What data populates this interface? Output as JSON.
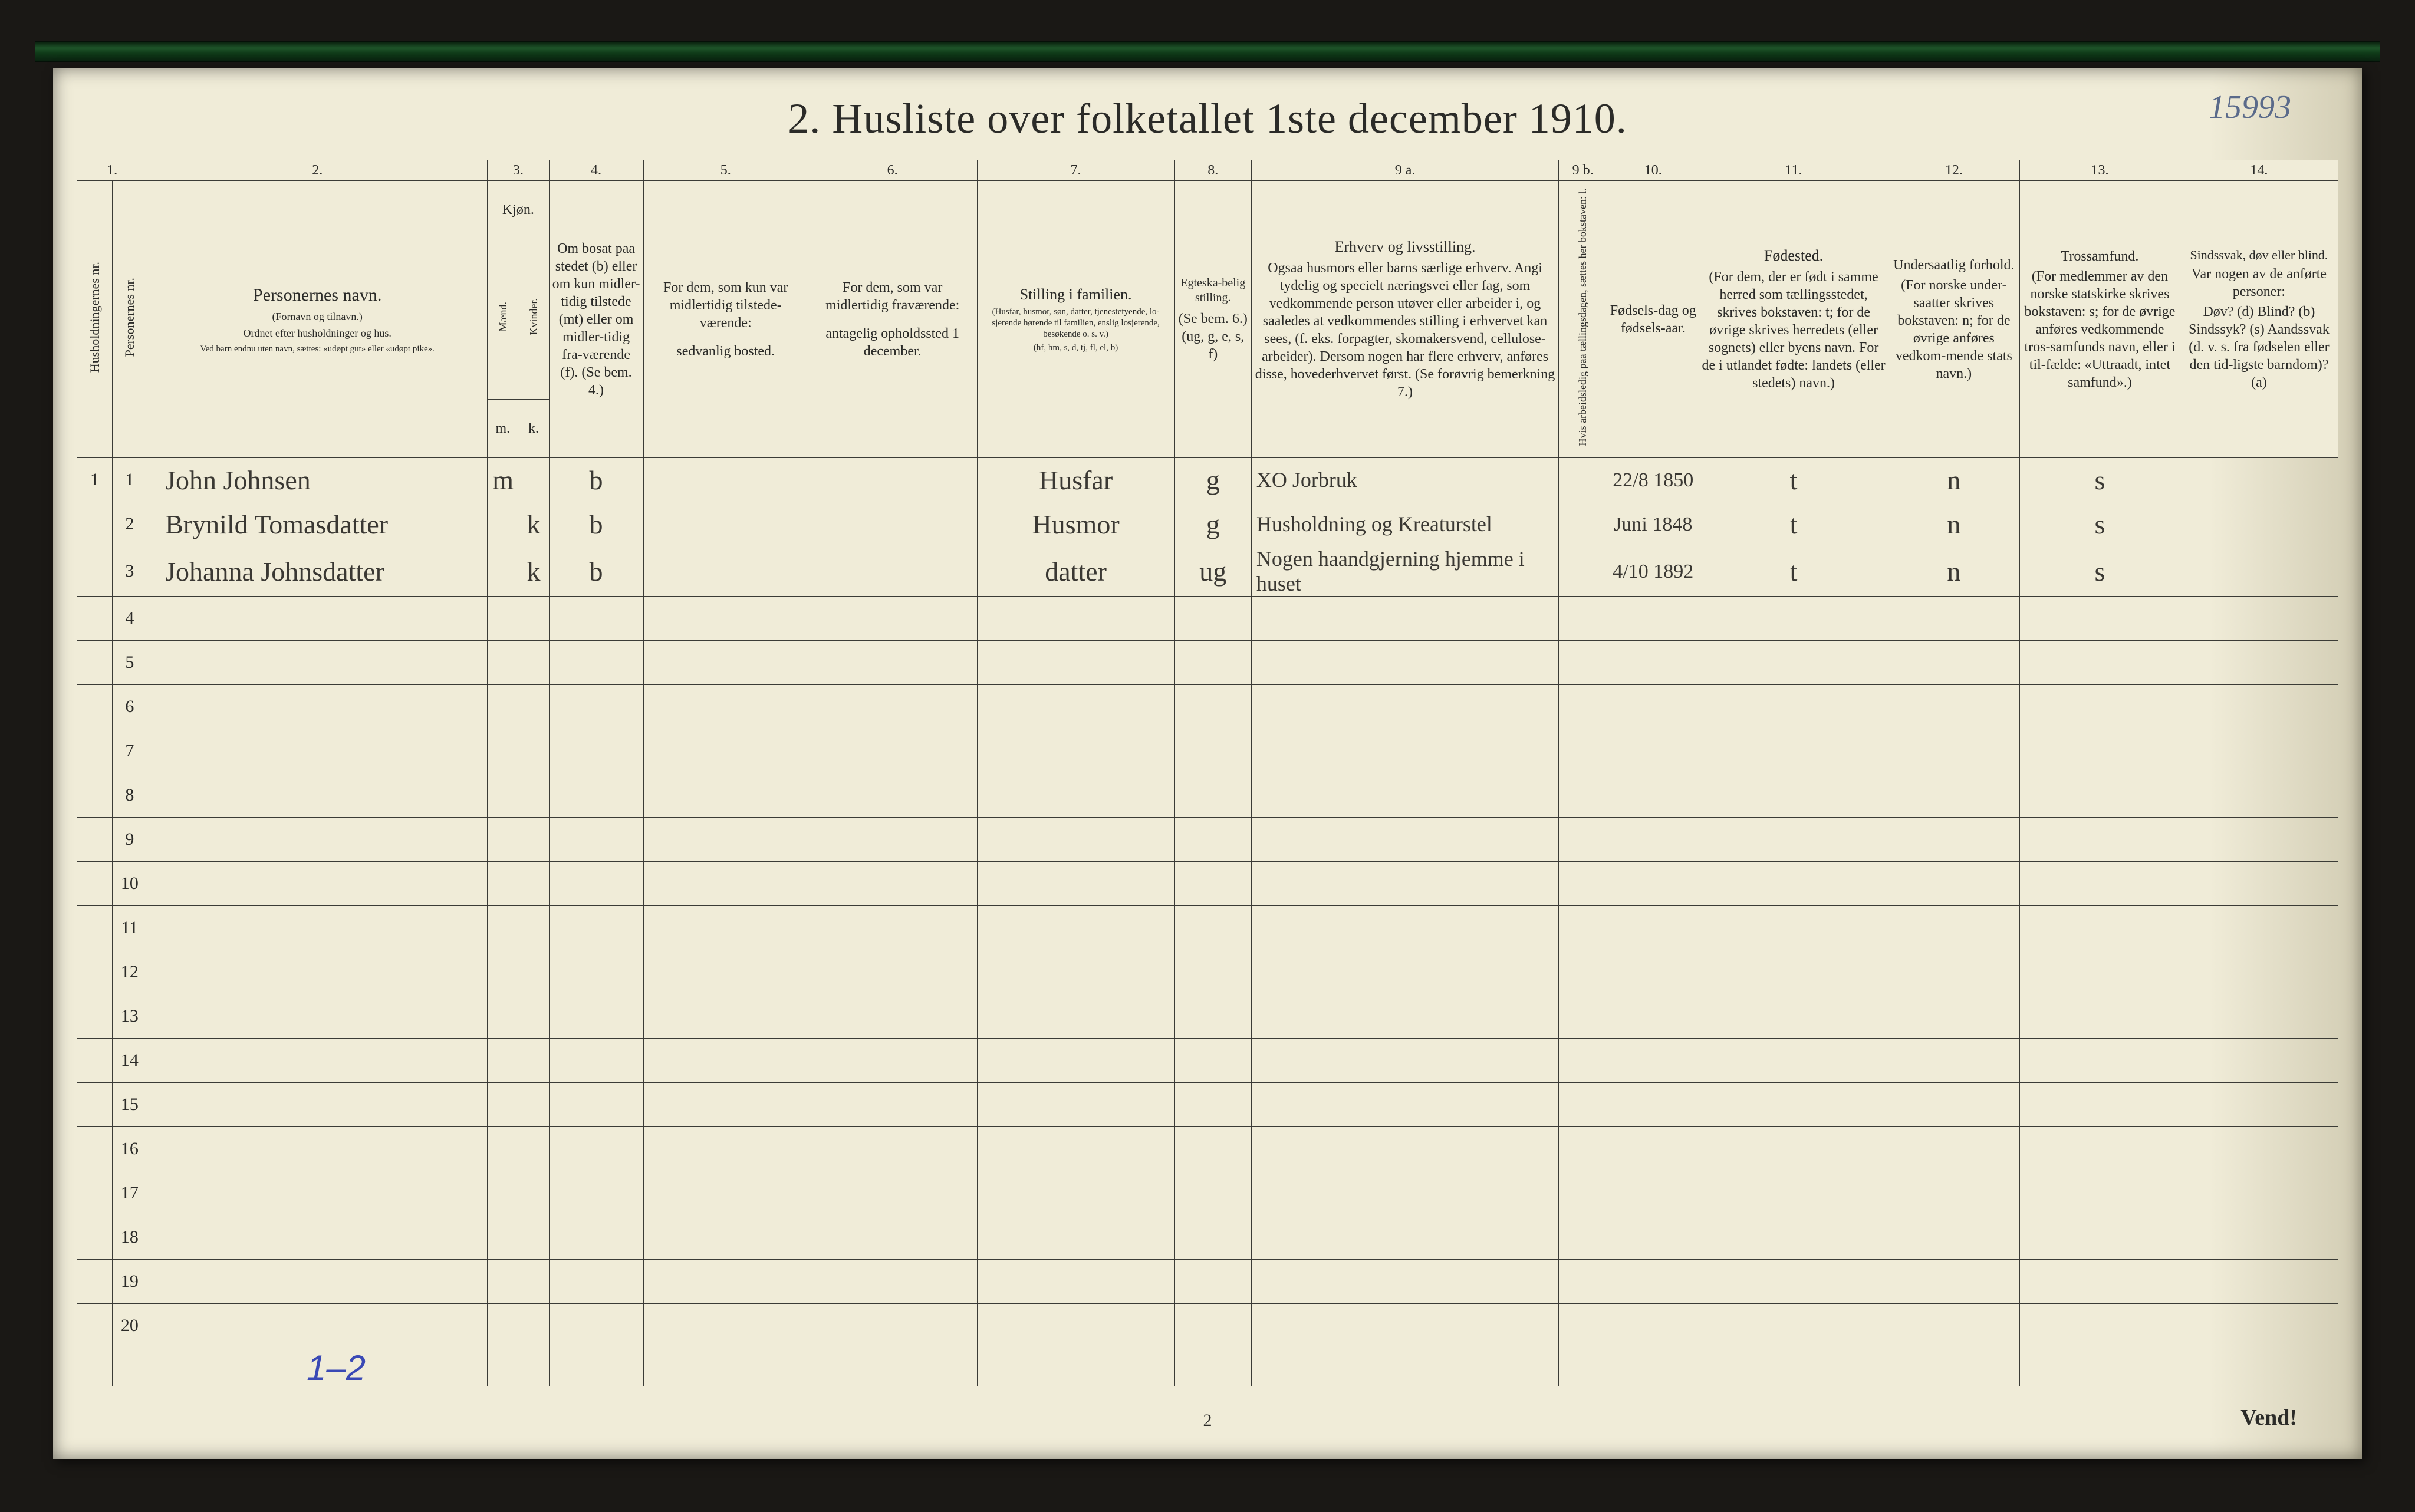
{
  "page_annotation": "15993",
  "title": "2.  Husliste over folketallet 1ste december 1910.",
  "bottom_center": "2",
  "bottom_right": "Vend!",
  "blue_mark": "1–2",
  "colors": {
    "paper": "#f0ecd8",
    "rule": "#3b3b36",
    "ink": "#3a3833",
    "print": "#2b2b28",
    "blue": "#3a49b5",
    "frame": "#1a1815"
  },
  "columns": {
    "numbers": [
      "1.",
      "2.",
      "3.",
      "4.",
      "5.",
      "6.",
      "7.",
      "8.",
      "9 a.",
      "9 b.",
      "10.",
      "11.",
      "12.",
      "13.",
      "14."
    ],
    "c1a": "Husholdningernes nr.",
    "c1b": "Personernes nr.",
    "c2_title": "Personernes navn.",
    "c2_sub1": "(Fornavn og tilnavn.)",
    "c2_sub2": "Ordnet efter husholdninger og hus.",
    "c2_sub3": "Ved barn endnu uten navn, sættes: «udøpt gut» eller «udøpt pike».",
    "c3_title": "Kjøn.",
    "c3_m": "Mænd.",
    "c3_k": "Kvinder.",
    "c3_m_ab": "m.",
    "c3_k_ab": "k.",
    "c4": "Om bosat paa stedet (b) eller om kun midler-tidig tilstede (mt) eller om midler-tidig fra-værende (f). (Se bem. 4.)",
    "c5": "For dem, som kun var midlertidig tilstede-værende:",
    "c5_sub": "sedvanlig bosted.",
    "c6": "For dem, som var midlertidig fraværende:",
    "c6_sub": "antagelig opholdssted 1 december.",
    "c7_title": "Stilling i familien.",
    "c7_sub": "(Husfar, husmor, søn, datter, tjenestetyende, lo-sjerende hørende til familien, enslig losjerende, besøkende o. s. v.)",
    "c7_sub2": "(hf, hm, s, d, tj, fl, el, b)",
    "c8_title": "Egteska-belig stilling.",
    "c8_sub": "(Se bem. 6.) (ug, g, e, s, f)",
    "c9a_title": "Erhverv og livsstilling.",
    "c9a_sub": "Ogsaa husmors eller barns særlige erhverv. Angi tydelig og specielt næringsvei eller fag, som vedkommende person utøver eller arbeider i, og saaledes at vedkommendes stilling i erhvervet kan sees, (f. eks. forpagter, skomakersvend, cellulose-arbeider). Dersom nogen har flere erhverv, anføres disse, hovederhvervet først. (Se forøvrig bemerkning 7.)",
    "c9b": "Hvis arbeidsledig paa tællingsdagen, sættes her bokstaven: l.",
    "c10_title": "Fødsels-dag og fødsels-aar.",
    "c11_title": "Fødested.",
    "c11_sub": "(For dem, der er født i samme herred som tællingsstedet, skrives bokstaven: t; for de øvrige skrives herredets (eller sognets) eller byens navn. For de i utlandet fødte: landets (eller stedets) navn.)",
    "c12_title": "Undersaatlig forhold.",
    "c12_sub": "(For norske under-saatter skrives bokstaven: n; for de øvrige anføres vedkom-mende stats navn.)",
    "c13_title": "Trossamfund.",
    "c13_sub": "(For medlemmer av den norske statskirke skrives bokstaven: s; for de øvrige anføres vedkommende tros-samfunds navn, eller i til-fælde: «Uttraadt, intet samfund».)",
    "c14_title": "Sindssvak, døv eller blind.",
    "c14_sub": "Var nogen av de anførte personer:",
    "c14_sub2": "Døv? (d)  Blind? (b)  Sindssyk? (s)  Aandssvak (d. v. s. fra fødselen eller den tid-ligste barndom)? (a)"
  },
  "rows": [
    {
      "hh": "1",
      "pn": "1",
      "name": "John Johnsen",
      "m": "m",
      "k": "",
      "res": "b",
      "c5": "",
      "c6": "",
      "fam": "Husfar",
      "mar": "g",
      "occ": "XO Jorbruk",
      "led": "",
      "dob": "22/8 1850",
      "born": "t",
      "nat": "n",
      "rel": "s",
      "dis": ""
    },
    {
      "hh": "",
      "pn": "2",
      "name": "Brynild Tomasdatter",
      "m": "",
      "k": "k",
      "res": "b",
      "c5": "",
      "c6": "",
      "fam": "Husmor",
      "mar": "g",
      "occ": "Husholdning og Kreaturstel",
      "led": "",
      "dob": "Juni 1848",
      "born": "t",
      "nat": "n",
      "rel": "s",
      "dis": ""
    },
    {
      "hh": "",
      "pn": "3",
      "name": "Johanna Johnsdatter",
      "m": "",
      "k": "k",
      "res": "b",
      "c5": "",
      "c6": "",
      "fam": "datter",
      "mar": "ug",
      "occ": "Nogen haandgjerning hjemme i huset",
      "led": "",
      "dob": "4/10 1892",
      "born": "t",
      "nat": "n",
      "rel": "s",
      "dis": ""
    }
  ],
  "empty_row_labels": [
    "4",
    "5",
    "6",
    "7",
    "8",
    "9",
    "10",
    "11",
    "12",
    "13",
    "14",
    "15",
    "16",
    "17",
    "18",
    "19",
    "20"
  ],
  "col_widths_pct": {
    "c1a": 1.6,
    "c1b": 1.6,
    "c2": 15.5,
    "c3m": 1.4,
    "c3k": 1.4,
    "c4": 4.3,
    "c5": 7.5,
    "c6": 7.7,
    "c7": 9.0,
    "c8": 3.5,
    "c9a": 14.0,
    "c9b": 2.2,
    "c10": 4.2,
    "c11": 8.6,
    "c12": 6.0,
    "c13": 7.3,
    "c14": 7.2
  }
}
